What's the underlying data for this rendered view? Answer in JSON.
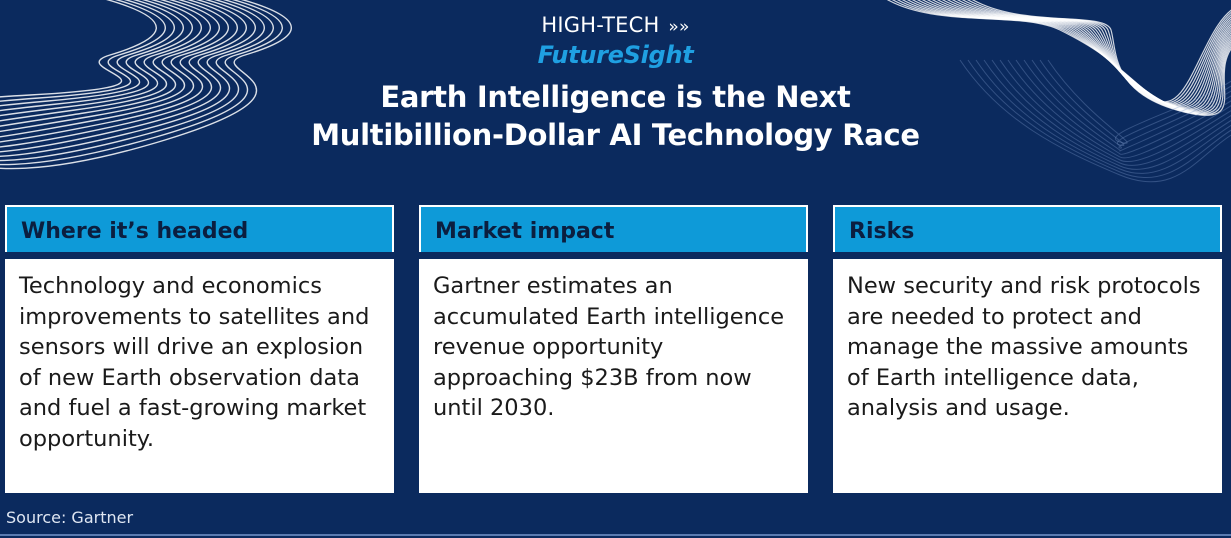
{
  "header": {
    "kicker": "HIGH-TECH",
    "kicker_arrows": "»»",
    "brand": "FutureSight",
    "title_line1": "Earth Intelligence is the Next",
    "title_line2": "Multibillion-Dollar AI Technology Race"
  },
  "cards": [
    {
      "heading": "Where it’s headed",
      "body": "Technology and economics improvements to satellites and sensors will drive an explosion of new Earth observation data and fuel a fast-growing market opportunity."
    },
    {
      "heading": "Market impact",
      "body": "Gartner estimates an accumulated Earth intelligence revenue opportunity approaching $23B from now until 2030."
    },
    {
      "heading": "Risks",
      "body": "New security and risk protocols are needed to protect and manage the massive amounts of Earth intelligence data, analysis and usage."
    }
  ],
  "source": "Source: Gartner",
  "colors": {
    "background": "#0b2a5e",
    "accent": "#0e9ad8",
    "brand": "#1fa0e2",
    "card_body": "#ffffff"
  }
}
